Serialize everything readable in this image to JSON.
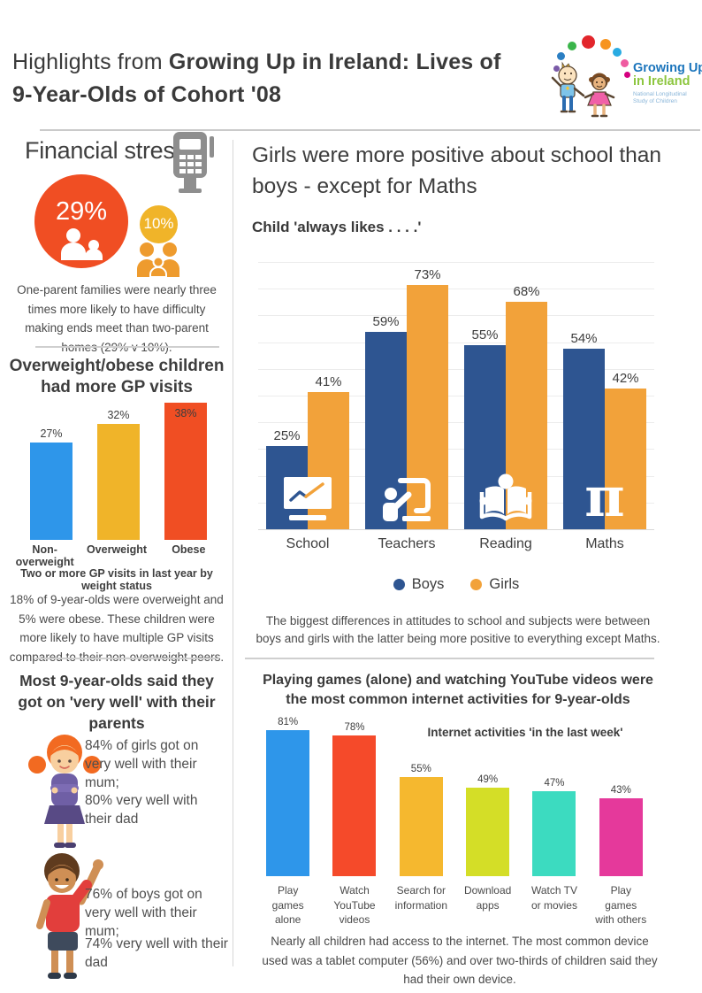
{
  "header": {
    "title_prefix": "Highlights from ",
    "title_bold1": "Growing Up in Ireland: Lives of",
    "title_bold2": "9-Year-Olds of Cohort '08",
    "logo": {
      "line1": "Growing Up",
      "line2": "in Ireland",
      "line3": "National Longitudinal",
      "line4": "Study of Children"
    }
  },
  "sections": {
    "financial": {
      "heading": "Financial stress",
      "big_circle_pct": "29%",
      "small_circle_pct": "10%",
      "note": "One-parent families were nearly three times more likely to have difficulty making ends meet than two-parent homes (29% v 10%)."
    },
    "gp": {
      "note": "18% of 9-year-olds were overweight and 5% were obese.  These children were more likely to have multiple GP visits compared to their non-overweight peers."
    },
    "parents": {
      "heading": "Most 9-year-olds said they got on 'very well' with their parents",
      "girl_text_1": "84% of girls got on very well with their mum;",
      "girl_text_2": "80% very well with their dad",
      "boy_text_1": "76% of boys got on very well with their mum;",
      "boy_text_2": "74% very well with their dad"
    },
    "school": {
      "title": "Girls were more positive about school than boys - except for Maths",
      "note": "The biggest differences in attitudes to school and subjects were between boys and girls with the latter being more positive to everything except Maths."
    },
    "internet": {
      "heading": "Playing games (alone) and watching YouTube videos were the most common internet activities for 9-year-olds",
      "note": "Nearly all children had access to the internet. The most common device used was a tablet computer (56%) and over two-thirds of children said they had their own device."
    }
  },
  "chart_data": [
    {
      "type": "bar",
      "title": "Overweight/obese children had more GP visits",
      "caption": "Two or more GP visits in last year by weight status",
      "categories": [
        "Non-overweight",
        "Overweight",
        "Obese"
      ],
      "values": [
        27,
        32,
        38
      ],
      "colors": [
        "#2e96ea",
        "#f0b429",
        "#f04e23"
      ],
      "unit": "%",
      "ylim": [
        0,
        40
      ],
      "grid": false
    },
    {
      "type": "bar",
      "title": "Child 'always likes . . . .'",
      "categories": [
        "School",
        "Teachers",
        "Reading",
        "Maths"
      ],
      "series": [
        {
          "name": "Boys",
          "color": "#2e5591",
          "values": [
            25,
            59,
            55,
            54
          ]
        },
        {
          "name": "Girls",
          "color": "#f2a23a",
          "values": [
            41,
            73,
            68,
            42
          ]
        }
      ],
      "unit": "%",
      "ylim": [
        0,
        80
      ],
      "grid": true,
      "legend_position": "bottom",
      "category_icons": [
        "presentation-chart-icon",
        "teacher-whiteboard-icon",
        "open-book-icon",
        "pi-icon"
      ]
    },
    {
      "type": "bar",
      "title": "Internet activities 'in the last week'",
      "categories": [
        "Play\ngames\nalone",
        "Watch\nYouTube\nvideos",
        "Search for\ninformation",
        "Download\napps",
        "Watch TV\nor movies",
        "Play\ngames\nwith others"
      ],
      "values": [
        81,
        78,
        55,
        49,
        47,
        43
      ],
      "colors": [
        "#2e96ea",
        "#f54a2a",
        "#f5b82f",
        "#d4de27",
        "#3cdbc0",
        "#e5399b"
      ],
      "unit": "%",
      "ylim": [
        0,
        90
      ],
      "grid": false
    }
  ],
  "colors": {
    "accent_red": "#f04e23",
    "accent_yellow": "#f0b429",
    "accent_blue": "#2e96ea",
    "boys_blue": "#2e5591",
    "girls_orange": "#f2a23a",
    "icon_gray": "#8e8e8e",
    "two_parent_orange": "#ee9b2e",
    "divider_gray": "#cfcfcf"
  },
  "icons": {
    "header_logo": "growing-up-ireland-logo",
    "financial": "card-terminal-icon",
    "one_parent_family": "one-parent-family-icon",
    "two_parent_family": "two-parent-family-icon",
    "school": "presentation-chart-icon",
    "teachers": "teacher-whiteboard-icon",
    "reading": "open-book-icon",
    "maths": "pi-icon",
    "girl": "girl-illustration",
    "boy": "boy-illustration"
  }
}
